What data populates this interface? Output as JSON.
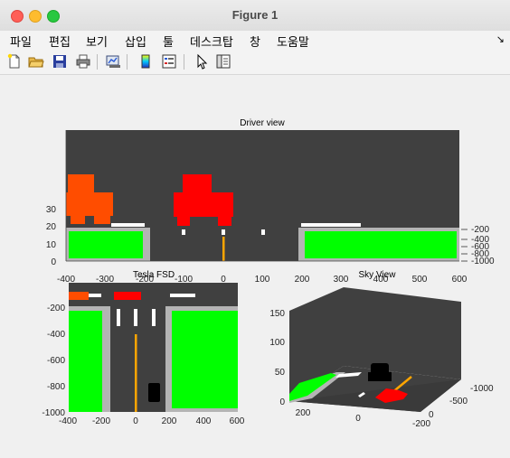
{
  "window": {
    "title": "Figure 1"
  },
  "menu": {
    "items": [
      "파일",
      "편집",
      "보기",
      "삽입",
      "툴",
      "데스크탑",
      "창",
      "도움말"
    ],
    "overflow_icon": "chevron-icon"
  },
  "toolbar": {
    "icons": [
      "new-figure-icon",
      "open-file-icon",
      "save-icon",
      "print-icon",
      "link-plot-icon",
      "insert-colorbar-icon",
      "insert-legend-icon",
      "pointer-icon",
      "property-inspector-icon"
    ]
  },
  "plots": {
    "driver": {
      "title": "Driver view",
      "x_ticks": [
        "-400",
        "-300",
        "-200",
        "-100",
        "0",
        "100",
        "200",
        "300",
        "400",
        "500",
        "600"
      ],
      "y_ticks": [
        "0",
        "10",
        "20",
        "30"
      ],
      "z_ticks": [
        "-200",
        "-400",
        "-600",
        "-800",
        "-1000"
      ]
    },
    "tesla": {
      "title": "Tesla FSD",
      "x_ticks": [
        "-400",
        "-200",
        "0",
        "200",
        "400",
        "600"
      ],
      "y_ticks": [
        "-200",
        "-400",
        "-600",
        "-800",
        "-1000"
      ]
    },
    "sky": {
      "title": "Sky View",
      "z_ticks": [
        "150",
        "100",
        "50",
        "0"
      ],
      "x_ticks": [
        "200",
        "0",
        "-200"
      ],
      "y_ticks": [
        "-1000",
        "-500",
        "0"
      ]
    }
  },
  "colors": {
    "road": "#404040",
    "grass": "#00ff00",
    "curb": "#b4b4b4",
    "lane_line": "#ffffff",
    "center_line": "#ffa500",
    "car_red": "#ff0000",
    "car_orange": "#ff4d00",
    "ego_car": "#000000"
  }
}
